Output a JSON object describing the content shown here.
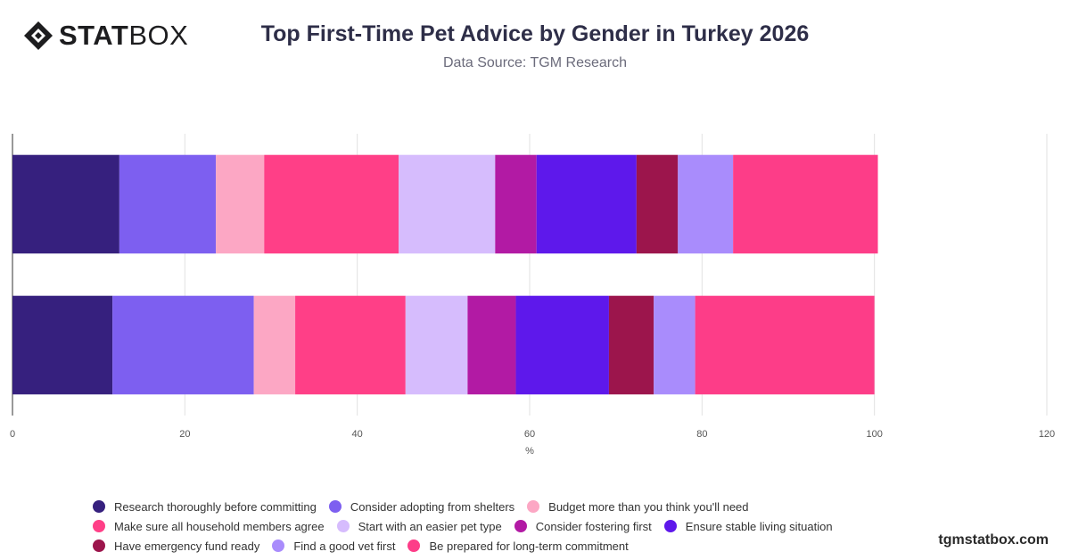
{
  "brand": {
    "logo_bold": "STAT",
    "logo_light": "BOX"
  },
  "header": {
    "title": "Top First-Time Pet Advice by Gender in Turkey 2026",
    "subtitle": "Data Source: TGM Research"
  },
  "watermark": "tgmstatbox.com",
  "chart_data": {
    "type": "bar",
    "orientation": "horizontal",
    "stacked": true,
    "title": "Top First-Time Pet Advice by Gender in Turkey 2026",
    "subtitle": "Data Source: TGM Research",
    "xlabel": "%",
    "ylabel": "",
    "xlim": [
      0,
      120
    ],
    "xticks": [
      0,
      20,
      40,
      60,
      80,
      100,
      120
    ],
    "grid": true,
    "legend_position": "bottom",
    "categories": [
      "",
      ""
    ],
    "series": [
      {
        "name": "Research thoroughly before committing",
        "color": "#36207e",
        "values": [
          12.4,
          11.6
        ]
      },
      {
        "name": "Consider adopting from shelters",
        "color": "#7d5ff0",
        "values": [
          11.2,
          16.4
        ]
      },
      {
        "name": "Budget more than you think you'll need",
        "color": "#fca7c4",
        "values": [
          5.6,
          4.8
        ]
      },
      {
        "name": "Make sure all household members agree",
        "color": "#ff3f87",
        "values": [
          15.6,
          12.8
        ]
      },
      {
        "name": "Start with an easier pet type",
        "color": "#d6bcfd",
        "values": [
          11.2,
          7.2
        ]
      },
      {
        "name": "Consider fostering first",
        "color": "#b21aa4",
        "values": [
          4.8,
          5.6
        ]
      },
      {
        "name": "Ensure stable living situation",
        "color": "#5e18eb",
        "values": [
          11.6,
          10.8
        ]
      },
      {
        "name": "Have emergency fund ready",
        "color": "#9c154c",
        "values": [
          4.8,
          5.2
        ]
      },
      {
        "name": "Find a good vet first",
        "color": "#a98cfc",
        "values": [
          6.4,
          4.8
        ]
      },
      {
        "name": "Be prepared for long-term commitment",
        "color": "#fd3d88",
        "values": [
          16.8,
          20.8
        ]
      }
    ]
  }
}
